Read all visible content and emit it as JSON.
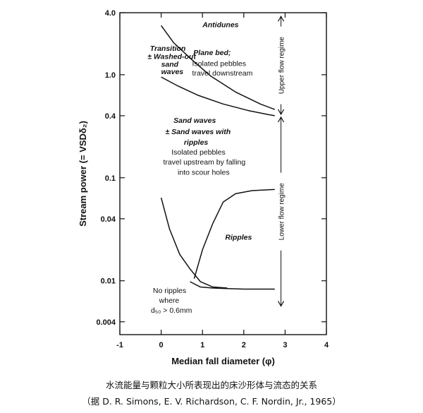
{
  "chart_data": {
    "type": "line",
    "title": "",
    "xlabel": "Median fall diameter (φ)",
    "ylabel": "Stream power (= VSDδ₂)",
    "xlim": [
      -1,
      4
    ],
    "ylim": [
      0.003,
      4.0
    ],
    "yscale": "log",
    "grid": false,
    "x_ticks": [
      -1,
      0,
      1,
      2,
      3,
      4
    ],
    "y_ticks": [
      4.0,
      1.0,
      0.4,
      0.1,
      0.04,
      0.01,
      0.004
    ],
    "y_tick_labels": [
      "4.0",
      "1.0",
      "0.4",
      "0.1",
      "0.04",
      "0.01",
      "0.004"
    ],
    "series": [
      {
        "x": [
          0.0,
          0.3,
          0.7,
          1.2,
          1.8,
          2.4,
          2.75
        ],
        "y": [
          3.0,
          2.05,
          1.45,
          0.97,
          0.68,
          0.52,
          0.46
        ]
      },
      {
        "x": [
          0.0,
          0.4,
          0.9,
          1.5,
          2.1,
          2.6,
          2.75
        ],
        "y": [
          0.95,
          0.78,
          0.63,
          0.52,
          0.45,
          0.41,
          0.4
        ]
      },
      {
        "x": [
          0.0,
          0.2,
          0.45,
          0.7,
          0.95,
          1.25,
          1.6
        ],
        "y": [
          0.064,
          0.032,
          0.018,
          0.013,
          0.0098,
          0.0087,
          0.0085
        ]
      },
      {
        "x": [
          0.7,
          0.95,
          1.25,
          1.6,
          2.0,
          2.5,
          2.75
        ],
        "y": [
          0.0098,
          0.0087,
          0.0085,
          0.0084,
          0.0083,
          0.0083,
          0.0083
        ]
      },
      {
        "x": [
          0.8,
          1.0,
          1.25,
          1.5,
          1.8,
          2.2,
          2.75
        ],
        "y": [
          0.0105,
          0.02,
          0.036,
          0.058,
          0.07,
          0.075,
          0.077
        ]
      }
    ],
    "annotations": [
      {
        "text": "Antidunes",
        "x": 1.0,
        "y": 2.9,
        "style": "italic"
      },
      {
        "text": "Plane bed;",
        "x": 0.78,
        "y": 1.55,
        "style": "italic"
      },
      {
        "text": "Isolated pebbles",
        "x": 0.75,
        "y": 1.22
      },
      {
        "text": "travel downstream",
        "x": 0.75,
        "y": 0.98
      },
      {
        "text": "Transition",
        "x": -0.27,
        "y": 1.7,
        "style": "italic"
      },
      {
        "text": "± Washed-out",
        "x": -0.33,
        "y": 1.42,
        "style": "italic"
      },
      {
        "text": "sand",
        "x": 0.0,
        "y": 1.2,
        "style": "italic"
      },
      {
        "text": "waves",
        "x": 0.0,
        "y": 1.01,
        "style": "italic"
      },
      {
        "text": "Sand waves",
        "x": 0.3,
        "y": 0.34,
        "style": "italic"
      },
      {
        "text": "± Sand waves with",
        "x": 0.1,
        "y": 0.265,
        "style": "italic"
      },
      {
        "text": "ripples",
        "x": 0.55,
        "y": 0.21,
        "style": "italic"
      },
      {
        "text": "Isolated pebbles",
        "x": 0.25,
        "y": 0.168
      },
      {
        "text": "travel upstream by falling",
        "x": 0.05,
        "y": 0.134
      },
      {
        "text": "into scour holes",
        "x": 0.4,
        "y": 0.107
      },
      {
        "text": "Ripples",
        "x": 1.55,
        "y": 0.025,
        "style": "italic"
      },
      {
        "text": "No ripples",
        "x": -0.2,
        "y": 0.0076
      },
      {
        "text": "where",
        "x": -0.05,
        "y": 0.0061
      },
      {
        "text": "d₅₀ > 0.6mm",
        "x": -0.25,
        "y": 0.0049
      }
    ],
    "regime_labels": [
      {
        "text": "Upper flow regime",
        "x_min_y": 0.4,
        "x_max_y": 3.8
      },
      {
        "text": "Lower flow regime",
        "x_min_y": 0.0055,
        "x_max_y": 0.4
      }
    ],
    "regime_x": 2.9
  },
  "caption": {
    "line1": "水流能量与颗粒大小所表现出的床沙形体与流态的关系",
    "line2": "（据 D. R. Simons, E. V. Richardson, C. F. Nordin, Jr., 1965）"
  }
}
